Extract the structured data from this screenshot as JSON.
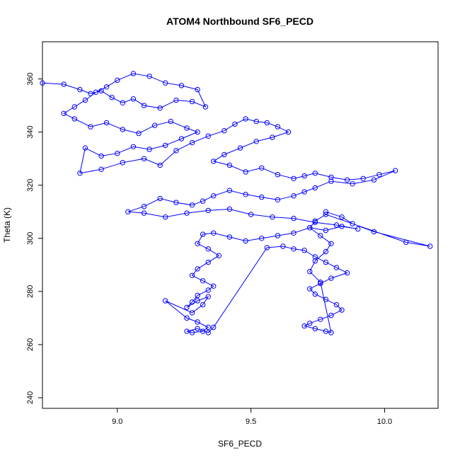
{
  "chart_data": {
    "type": "scatter",
    "title": "ATOM4 Northbound SF6_PECD",
    "xlabel": "SF6_PECD",
    "ylabel": "Theta (K)",
    "xlim": [
      8.72,
      10.2
    ],
    "ylim": [
      236,
      374
    ],
    "xticks": [
      9.0,
      9.5,
      10.0
    ],
    "xtick_labels": [
      "9.0",
      "9.5",
      "10.0"
    ],
    "yticks": [
      240,
      260,
      280,
      300,
      320,
      340,
      360
    ],
    "ytick_labels": [
      "240",
      "260",
      "280",
      "300",
      "320",
      "340",
      "360"
    ],
    "grid": false,
    "legend": "none",
    "marker": "open-circle",
    "connect_points": true,
    "series_color": "#0000ff",
    "series": [
      {
        "x": [
          8.72,
          8.8,
          8.86,
          8.9,
          8.94,
          8.98,
          9.02,
          9.06,
          9.1,
          9.16,
          9.22,
          9.28,
          9.33,
          9.3,
          9.24,
          9.18,
          9.12,
          9.06,
          9.0,
          8.96,
          8.92,
          8.88,
          8.84,
          8.8,
          8.84,
          8.9,
          8.96,
          9.02,
          9.08,
          9.14,
          9.2,
          9.26,
          9.3,
          9.24,
          9.18,
          9.12,
          9.06,
          9.0,
          8.94,
          8.88,
          8.86,
          8.94,
          9.02,
          9.1,
          9.16,
          9.22,
          9.28,
          9.34,
          9.4,
          9.44,
          9.48,
          9.52,
          9.56,
          9.6,
          9.64,
          9.58,
          9.52,
          9.46,
          9.4,
          9.36,
          9.42,
          9.48,
          9.54,
          9.6,
          9.66,
          9.7,
          9.74,
          9.8,
          9.86,
          9.92,
          9.98,
          10.04,
          9.96,
          9.88,
          9.8,
          9.74,
          9.7,
          9.66,
          9.6,
          9.54,
          9.48,
          9.42,
          9.36,
          9.32,
          9.28,
          9.22,
          9.16,
          9.1,
          9.04,
          9.1,
          9.18,
          9.26,
          9.34,
          9.42,
          9.5,
          9.58,
          9.66,
          9.74,
          9.82,
          9.9,
          9.84,
          9.78,
          9.72,
          9.66,
          9.6,
          9.54,
          9.48,
          9.42,
          9.36,
          9.32,
          9.3,
          9.34,
          9.38,
          9.34,
          9.3,
          9.28,
          9.32,
          9.36,
          9.34,
          9.3,
          9.28,
          9.26,
          9.3,
          9.34,
          9.32,
          9.28,
          9.18,
          9.26,
          9.3,
          9.34,
          9.32,
          9.28,
          9.26,
          9.3,
          9.34,
          9.36,
          9.56,
          9.62,
          9.66,
          9.7,
          9.74,
          9.78,
          9.82,
          9.86,
          9.8,
          9.76,
          9.72,
          9.74,
          9.78,
          9.82,
          9.84,
          9.8,
          9.76,
          9.72,
          9.7,
          9.74,
          9.78,
          9.8,
          9.76,
          9.72,
          9.74,
          9.78,
          9.8,
          9.76,
          9.72,
          9.74,
          9.78,
          10.08,
          10.17,
          9.96,
          9.88,
          9.84,
          9.78
        ],
        "y": [
          358.5,
          358.0,
          356.0,
          354.5,
          355.5,
          353.0,
          351.0,
          352.5,
          350.0,
          349.0,
          352.0,
          351.5,
          349.5,
          356.0,
          357.5,
          358.5,
          361.0,
          362.0,
          359.5,
          357.0,
          355.0,
          352.0,
          349.5,
          347.0,
          345.0,
          342.0,
          343.5,
          341.0,
          339.5,
          342.5,
          344.0,
          341.5,
          340.0,
          337.5,
          335.0,
          333.5,
          334.5,
          332.0,
          331.0,
          334.0,
          324.5,
          326.0,
          328.5,
          330.0,
          327.5,
          333.0,
          336.0,
          338.5,
          340.5,
          343.0,
          345.0,
          344.0,
          343.5,
          342.0,
          340.0,
          338.0,
          336.5,
          334.0,
          331.5,
          329.0,
          327.5,
          325.0,
          326.5,
          324.0,
          322.5,
          323.5,
          324.5,
          323.0,
          322.0,
          322.5,
          324.0,
          325.5,
          322.0,
          320.5,
          321.5,
          319.0,
          317.5,
          316.0,
          314.5,
          315.5,
          316.5,
          318.0,
          316.0,
          314.0,
          312.5,
          313.5,
          315.0,
          312.0,
          310.0,
          309.5,
          308.0,
          309.5,
          310.5,
          311.0,
          309.0,
          308.0,
          307.5,
          306.0,
          305.0,
          303.5,
          304.5,
          303.0,
          304.0,
          302.0,
          301.0,
          300.0,
          299.0,
          300.5,
          302.0,
          301.5,
          298.0,
          296.0,
          293.5,
          291.0,
          288.5,
          286.0,
          284.0,
          282.0,
          280.5,
          278.5,
          276.0,
          274.0,
          276.5,
          278.0,
          275.0,
          272.0,
          276.5,
          270.0,
          268.5,
          266.5,
          265.0,
          264.5,
          265.0,
          266.0,
          264.5,
          266.5,
          296.5,
          297.0,
          296.0,
          295.5,
          293.0,
          291.0,
          289.0,
          287.0,
          285.0,
          283.0,
          281.0,
          279.0,
          277.0,
          275.0,
          273.0,
          271.0,
          269.5,
          268.0,
          267.0,
          266.0,
          265.0,
          264.5,
          283.5,
          287.5,
          291.5,
          295.0,
          298.0,
          301.0,
          304.0,
          306.5,
          309.0,
          298.5,
          297.0,
          302.5,
          305.5,
          308.0,
          310.0
        ]
      }
    ]
  }
}
